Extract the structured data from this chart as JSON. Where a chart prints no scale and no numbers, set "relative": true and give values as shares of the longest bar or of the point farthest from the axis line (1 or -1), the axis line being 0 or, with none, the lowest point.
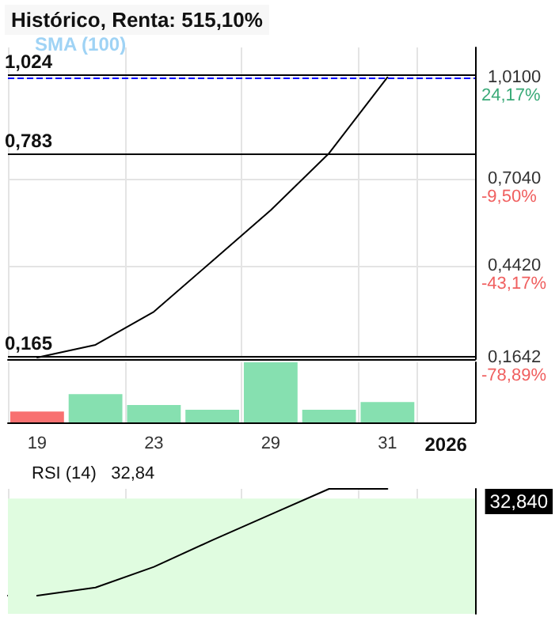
{
  "chart_data": [
    {
      "type": "line",
      "title": "Histórico, Renta: 515,10%",
      "annotations": [
        "SMA (100)",
        "24,17%",
        "-9,50%",
        "-43,17%",
        "-78,89%"
      ],
      "categories": [
        "19",
        null,
        "23",
        null,
        "29",
        null,
        "31",
        "2026"
      ],
      "series": [
        {
          "color": "#000000",
          "values": [
            0.165,
            0.203,
            0.303,
            0.456,
            0.609,
            0.781,
            1.01,
            null
          ]
        }
      ],
      "ylim": [
        0.16,
        1.1
      ],
      "yticks": [
        {
          "value": 1.01,
          "label": "1,0100"
        },
        {
          "value": 0.704,
          "label": "0,7040"
        },
        {
          "value": 0.442,
          "label": "0,4420"
        },
        {
          "value": 0.1642,
          "label": "0,1642"
        }
      ],
      "ref_lines": [
        {
          "axis": "y",
          "value": 1.024,
          "label": "1,024",
          "color": "#000000"
        },
        {
          "axis": "y",
          "value": 0.783,
          "label": "0,783",
          "color": "#000000"
        },
        {
          "axis": "y",
          "value": 0.165,
          "label": "0,165",
          "color": "#000000"
        },
        {
          "axis": "y",
          "value": 1.01,
          "label": null,
          "color": "#0000ff",
          "line_style": "dashed"
        }
      ],
      "grid": true,
      "marker": "none",
      "tick_labels": "y"
    },
    {
      "type": "bar",
      "relative": true,
      "categories": [
        "19",
        null,
        "23",
        null,
        "29",
        null,
        "31",
        "2026"
      ],
      "values": [
        0.18,
        0.47,
        0.29,
        0.21,
        1,
        0.21,
        0.34,
        null
      ],
      "colors": [
        "#f87171",
        "#86e0b0",
        "#86e0b0",
        "#86e0b0",
        "#86e0b0",
        "#86e0b0",
        "#86e0b0",
        "#86e0b0"
      ],
      "grid": "x",
      "tick_labels": "x"
    },
    {
      "type": "line",
      "relative": true,
      "title": "RSI (14)   32,84",
      "annotations": [
        "32,840"
      ],
      "categories": [
        "19",
        null,
        "23",
        null,
        "29",
        null,
        "31",
        "2026"
      ],
      "series": [
        {
          "color": "#000000",
          "values": [
            0,
            0.076,
            0.27,
            0.52,
            0.76,
            1,
            1,
            null
          ]
        }
      ],
      "bands": [
        {
          "axis": "y",
          "from": -0.17,
          "to": 0.91,
          "color": "#e0fce0"
        }
      ],
      "grid": "x",
      "marker": "none",
      "tick_labels": false
    }
  ]
}
